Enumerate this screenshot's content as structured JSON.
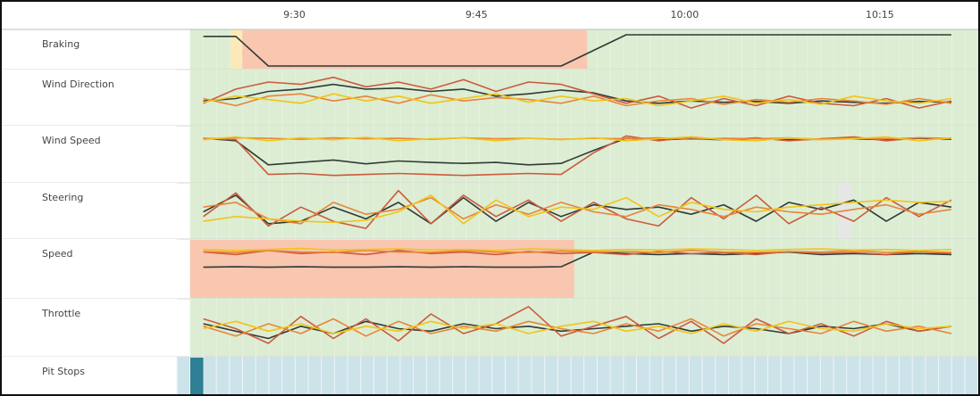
{
  "header": {
    "xticks": [
      {
        "value": 570,
        "label": "9:30"
      },
      {
        "value": 584,
        "label": "9:45"
      },
      {
        "value": 600,
        "label": "10:00"
      },
      {
        "value": 615,
        "label": "10:15"
      }
    ]
  },
  "xlim": [
    562,
    622.7
  ],
  "ylim": [
    0,
    100
  ],
  "x": [
    563,
    565.5,
    568,
    570.5,
    573,
    575.5,
    578,
    580.5,
    583,
    585.5,
    588,
    590.5,
    593,
    595.5,
    598,
    600.5,
    603,
    605.5,
    608,
    610.5,
    613,
    615.5,
    618,
    620.5
  ],
  "rows": [
    {
      "label": "Braking",
      "regions": [
        {
          "start": 565.1,
          "end": 566,
          "color": "#fbeab8"
        },
        {
          "start": 566,
          "end": 592.5,
          "color": "#f9c6b0"
        }
      ],
      "series": [
        {
          "color": "#2f3a35",
          "values": [
            95,
            95,
            0,
            0,
            0,
            0,
            0,
            0,
            0,
            0,
            0,
            0,
            50,
            100,
            100,
            100,
            100,
            100,
            100,
            100,
            100,
            100,
            100,
            100
          ]
        }
      ]
    },
    {
      "label": "Wind Direction",
      "regions": [],
      "series": [
        {
          "color": "#2f3a35",
          "values": [
            45,
            50,
            65,
            70,
            80,
            70,
            72,
            65,
            70,
            55,
            60,
            68,
            62,
            45,
            40,
            45,
            42,
            44,
            40,
            45,
            42,
            40,
            44,
            42
          ]
        },
        {
          "color": "#cc5a3d",
          "values": [
            40,
            70,
            85,
            80,
            95,
            75,
            85,
            70,
            90,
            65,
            85,
            80,
            60,
            40,
            55,
            30,
            50,
            35,
            55,
            40,
            35,
            50,
            30,
            45
          ]
        },
        {
          "color": "#e8843a",
          "values": [
            50,
            35,
            55,
            60,
            45,
            55,
            40,
            58,
            45,
            52,
            48,
            40,
            55,
            35,
            45,
            50,
            38,
            48,
            42,
            50,
            45,
            38,
            50,
            40
          ]
        },
        {
          "color": "#f0c419",
          "values": [
            42,
            55,
            48,
            40,
            60,
            45,
            55,
            40,
            50,
            60,
            42,
            55,
            45,
            50,
            35,
            45,
            55,
            40,
            48,
            38,
            55,
            45,
            40,
            50
          ]
        }
      ]
    },
    {
      "label": "Wind Speed",
      "regions": [],
      "series": [
        {
          "color": "#2f3a35",
          "values": [
            85,
            80,
            30,
            35,
            40,
            32,
            38,
            35,
            33,
            35,
            30,
            33,
            60,
            85,
            82,
            84,
            82,
            85,
            82,
            83,
            84,
            82,
            85,
            83
          ]
        },
        {
          "color": "#cc5a3d",
          "values": [
            85,
            82,
            10,
            12,
            8,
            10,
            12,
            10,
            8,
            10,
            12,
            10,
            55,
            90,
            80,
            88,
            82,
            86,
            80,
            84,
            88,
            80,
            86,
            84
          ]
        },
        {
          "color": "#e8843a",
          "values": [
            84,
            86,
            85,
            83,
            86,
            84,
            85,
            83,
            86,
            84,
            85,
            83,
            85,
            84,
            86,
            83,
            85,
            84,
            86,
            83,
            85,
            84,
            86,
            85
          ]
        },
        {
          "color": "#f0c419",
          "values": [
            82,
            88,
            80,
            86,
            82,
            87,
            80,
            84,
            86,
            80,
            85,
            82,
            86,
            80,
            84,
            88,
            82,
            80,
            86,
            82,
            84,
            88,
            80,
            86
          ]
        }
      ]
    },
    {
      "label": "Steering",
      "regions": [
        {
          "start": 611.8,
          "end": 612.8,
          "color": "#e6e6e6"
        }
      ],
      "series": [
        {
          "color": "#2f3a35",
          "values": [
            50,
            85,
            25,
            30,
            60,
            35,
            70,
            25,
            80,
            30,
            70,
            40,
            65,
            55,
            60,
            45,
            65,
            30,
            70,
            55,
            75,
            30,
            70,
            60
          ]
        },
        {
          "color": "#cc5a3d",
          "values": [
            40,
            90,
            20,
            60,
            30,
            15,
            95,
            25,
            85,
            40,
            75,
            30,
            70,
            35,
            20,
            80,
            35,
            85,
            25,
            60,
            30,
            80,
            40,
            75
          ]
        },
        {
          "color": "#e8843a",
          "values": [
            60,
            70,
            35,
            25,
            70,
            45,
            55,
            80,
            35,
            65,
            45,
            70,
            50,
            40,
            65,
            55,
            40,
            60,
            50,
            45,
            55,
            65,
            45,
            55
          ]
        },
        {
          "color": "#f0c419",
          "values": [
            30,
            40,
            35,
            30,
            28,
            32,
            50,
            85,
            25,
            75,
            40,
            60,
            55,
            80,
            40,
            70,
            55,
            50,
            60,
            65,
            70,
            75,
            70,
            72
          ]
        }
      ]
    },
    {
      "label": "Speed",
      "regions": [
        {
          "start": 562,
          "end": 591.5,
          "color": "#f9c6b0"
        }
      ],
      "series": [
        {
          "color": "#2f3a35",
          "values": [
            55,
            56,
            55,
            56,
            55,
            55,
            56,
            55,
            56,
            55,
            55,
            56,
            85,
            82,
            80,
            82,
            80,
            82,
            85,
            80,
            82,
            80,
            82,
            80
          ]
        },
        {
          "color": "#cc5a3d",
          "values": [
            85,
            80,
            88,
            82,
            85,
            80,
            88,
            82,
            85,
            80,
            86,
            82,
            84,
            80,
            86,
            82,
            84,
            80,
            86,
            82,
            84,
            80,
            86,
            82
          ]
        },
        {
          "color": "#e8843a",
          "values": [
            86,
            84,
            88,
            85,
            84,
            88,
            85,
            84,
            88,
            85,
            84,
            87,
            85,
            86,
            84,
            88,
            85,
            84,
            86,
            85,
            88,
            84,
            86,
            84
          ]
        },
        {
          "color": "#f0c419",
          "values": [
            90,
            88,
            90,
            92,
            89,
            90,
            91,
            89,
            90,
            88,
            91,
            90,
            88,
            90,
            89,
            91,
            90,
            88,
            90,
            91,
            89,
            90,
            88,
            90
          ]
        }
      ]
    },
    {
      "label": "Throttle",
      "regions": [],
      "series": [
        {
          "color": "#2f3a35",
          "values": [
            60,
            45,
            30,
            55,
            40,
            65,
            50,
            45,
            60,
            50,
            55,
            45,
            50,
            55,
            60,
            45,
            55,
            50,
            40,
            55,
            50,
            60,
            45,
            55
          ]
        },
        {
          "color": "#cc5a3d",
          "values": [
            70,
            50,
            20,
            75,
            30,
            70,
            25,
            80,
            40,
            60,
            95,
            35,
            55,
            75,
            30,
            65,
            20,
            70,
            40,
            60,
            35,
            65,
            45,
            55
          ]
        },
        {
          "color": "#e8843a",
          "values": [
            55,
            35,
            60,
            40,
            70,
            35,
            65,
            40,
            55,
            45,
            65,
            50,
            40,
            60,
            45,
            70,
            35,
            60,
            50,
            40,
            65,
            45,
            55,
            40
          ]
        },
        {
          "color": "#f0c419",
          "values": [
            50,
            65,
            45,
            60,
            40,
            55,
            45,
            65,
            50,
            60,
            40,
            55,
            65,
            45,
            55,
            40,
            60,
            45,
            65,
            50,
            45,
            60,
            50,
            55
          ]
        }
      ]
    },
    {
      "label": "Pit Stops",
      "regions": [
        {
          "start": 562,
          "end": 563,
          "color": "#2e7f93"
        }
      ],
      "series": []
    }
  ]
}
